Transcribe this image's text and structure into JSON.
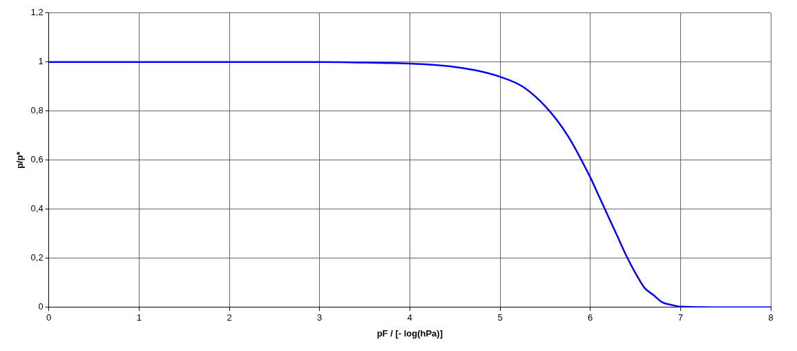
{
  "chart_data": {
    "type": "line",
    "xlabel": "pF / [- log(hPa)]",
    "ylabel": "p/p*",
    "xlim": [
      0,
      8
    ],
    "xticks": [
      0,
      1,
      2,
      3,
      4,
      5,
      6,
      7,
      8
    ],
    "ylim": [
      0,
      1.2
    ],
    "yticks": [
      {
        "value": 0,
        "label": "0"
      },
      {
        "value": 0.2,
        "label": "0,2"
      },
      {
        "value": 0.4,
        "label": "0,4"
      },
      {
        "value": 0.6,
        "label": "0,6"
      },
      {
        "value": 0.8,
        "label": "0,8"
      },
      {
        "value": 1,
        "label": "1"
      },
      {
        "value": 1.2,
        "label": "1,2"
      }
    ],
    "grid": true,
    "legend": false,
    "marker": "none",
    "line_style": "solid",
    "series": [
      {
        "color": "#0000ff",
        "x": [
          0,
          1,
          2,
          3,
          3.5,
          4,
          4.25,
          4.5,
          4.75,
          5,
          5.25,
          5.5,
          5.75,
          6,
          6.1,
          6.2,
          6.3,
          6.4,
          6.5,
          6.6,
          6.7,
          6.8,
          6.9,
          7,
          7.5,
          8
        ],
        "values": [
          1,
          1,
          1,
          1,
          0.998,
          0.994,
          0.989,
          0.98,
          0.965,
          0.94,
          0.9,
          0.82,
          0.7,
          0.53,
          0.45,
          0.37,
          0.29,
          0.21,
          0.14,
          0.08,
          0.05,
          0.02,
          0.01,
          0.003,
          0,
          0
        ]
      }
    ]
  }
}
